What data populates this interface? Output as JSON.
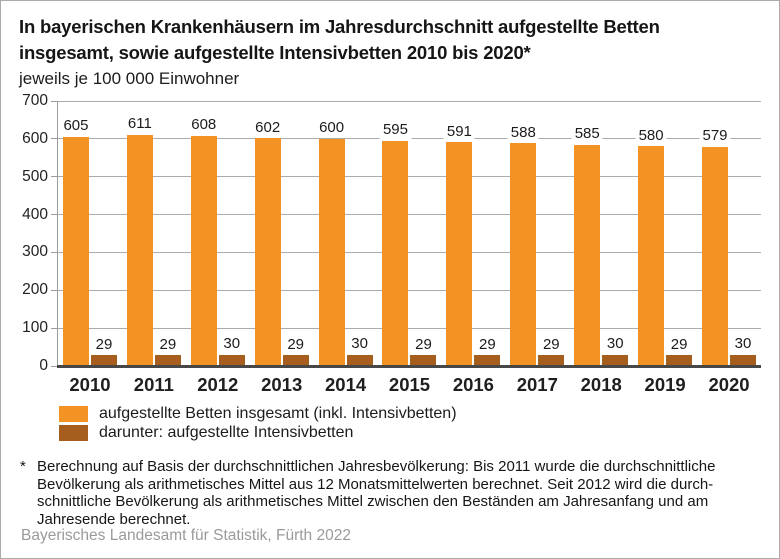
{
  "header": {
    "title_line1": "In bayerischen Krankenhäusern im Jahresdurchschnitt aufgestellte Betten",
    "title_line2": "insgesamt, sowie aufgestellte Intensivbetten 2010 bis 2020*",
    "subtitle": "jeweils je 100 000 Einwohner"
  },
  "chart_data": {
    "type": "bar",
    "categories": [
      "2010",
      "2011",
      "2012",
      "2013",
      "2014",
      "2015",
      "2016",
      "2017",
      "2018",
      "2019",
      "2020"
    ],
    "series": [
      {
        "name": "aufgestellte Betten insgesamt (inkl. Intensivbetten)",
        "color": "#F39323",
        "values": [
          605,
          611,
          608,
          602,
          600,
          595,
          591,
          588,
          585,
          580,
          579
        ]
      },
      {
        "name": "darunter: aufgestellte Intensivbetten",
        "color": "#A55E1E",
        "values": [
          29,
          29,
          30,
          29,
          30,
          29,
          29,
          29,
          30,
          29,
          30
        ]
      }
    ],
    "ylim": [
      0,
      700
    ],
    "yticks": [
      0,
      100,
      200,
      300,
      400,
      500,
      600,
      700
    ],
    "grid": true,
    "legend_position": "bottom-left",
    "gridline_color": "#ABABAB",
    "axis_color": "#474747"
  },
  "footnote": {
    "marker": "*",
    "text": "Berechnung auf Basis der durchschnittlichen Jahresbevölkerung: Bis 2011 wurde die durchschnittliche\nBevölkerung als arithmetisches Mittel aus 12 Monatsmittelwerten berechnet. Seit 2012 wird die durch-\nschnittliche Bevölkerung als arithmetisches Mittel zwischen den Beständen am Jahresanfang und am\nJahresende berechnet."
  },
  "footer": {
    "text": "Bayerisches Landesamt für Statistik, Fürth 2022"
  }
}
